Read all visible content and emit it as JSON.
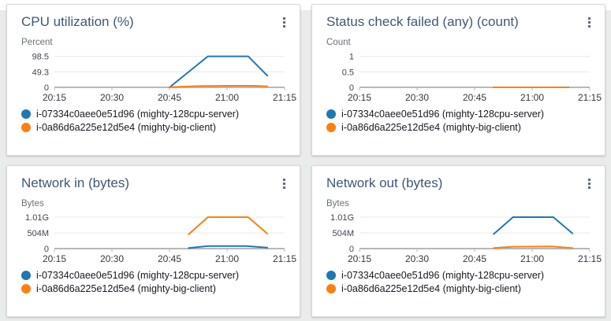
{
  "page": {
    "background_color": "#eaebeb",
    "card_border_color": "#d5d9d9",
    "title_color": "#3f5873"
  },
  "chart_data": [
    {
      "type": "line",
      "title": "CPU utilization (%)",
      "unit_label": "Percent",
      "ylim": [
        0,
        110
      ],
      "x_domain": [
        0,
        60
      ],
      "grid": true,
      "legend_position": "bottom",
      "y_ticks": [
        {
          "value": 98.5,
          "label": "98.5"
        },
        {
          "value": 49.3,
          "label": "49.3"
        },
        {
          "value": 0,
          "label": "0"
        }
      ],
      "x_ticks": [
        {
          "minute": 0,
          "label": "20:15"
        },
        {
          "minute": 15,
          "label": "20:30"
        },
        {
          "minute": 30,
          "label": "20:45"
        },
        {
          "minute": 45,
          "label": "21:00"
        },
        {
          "minute": 60,
          "label": "21:15"
        }
      ],
      "series": [
        {
          "name": "i-07334c0aee0e51d96 (mighty-128cpu-server)",
          "color": "#1f77b4",
          "points": [
            [
              30,
              0
            ],
            [
              40,
              98.5
            ],
            [
              50.5,
              98.5
            ],
            [
              55.5,
              37
            ]
          ]
        },
        {
          "name": "i-0a86d6a225e12d5e4 (mighty-big-client)",
          "color": "#ff7f0e",
          "points": [
            [
              30,
              0.8
            ],
            [
              38,
              4
            ],
            [
              46,
              5
            ],
            [
              52,
              5
            ],
            [
              55.5,
              3
            ]
          ]
        }
      ]
    },
    {
      "type": "line",
      "title": "Status check failed (any) (count)",
      "unit_label": "Count",
      "ylim": [
        0,
        1.12
      ],
      "x_domain": [
        0,
        60
      ],
      "grid": true,
      "legend_position": "bottom",
      "y_ticks": [
        {
          "value": 1,
          "label": "1"
        },
        {
          "value": 0.5,
          "label": "0.5"
        },
        {
          "value": 0,
          "label": "0"
        }
      ],
      "x_ticks": [
        {
          "minute": 0,
          "label": "20:15"
        },
        {
          "minute": 15,
          "label": "20:30"
        },
        {
          "minute": 30,
          "label": "20:45"
        },
        {
          "minute": 45,
          "label": "21:00"
        },
        {
          "minute": 60,
          "label": "21:15"
        }
      ],
      "series": [
        {
          "name": "i-07334c0aee0e51d96 (mighty-128cpu-server)",
          "color": "#1f77b4",
          "points": [
            [
              35,
              0
            ],
            [
              54.5,
              0
            ]
          ]
        },
        {
          "name": "i-0a86d6a225e12d5e4 (mighty-big-client)",
          "color": "#ff7f0e",
          "points": [
            [
              35,
              0
            ],
            [
              54.5,
              0
            ]
          ]
        }
      ]
    },
    {
      "type": "line",
      "title": "Network in (bytes)",
      "unit_label": "Bytes",
      "ylim": [
        0,
        1.11
      ],
      "x_domain": [
        0,
        60
      ],
      "grid": true,
      "legend_position": "bottom",
      "y_ticks": [
        {
          "value": 1.01,
          "label": "1.01G"
        },
        {
          "value": 0.504,
          "label": "504M"
        },
        {
          "value": 0,
          "label": "0"
        }
      ],
      "x_ticks": [
        {
          "minute": 0,
          "label": "20:15"
        },
        {
          "minute": 15,
          "label": "20:30"
        },
        {
          "minute": 30,
          "label": "20:45"
        },
        {
          "minute": 45,
          "label": "21:00"
        },
        {
          "minute": 60,
          "label": "21:15"
        }
      ],
      "series": [
        {
          "name": "i-07334c0aee0e51d96 (mighty-128cpu-server)",
          "color": "#1f77b4",
          "points": [
            [
              35,
              0.02
            ],
            [
              40,
              0.08
            ],
            [
              50,
              0.08
            ],
            [
              55.5,
              0.03
            ]
          ]
        },
        {
          "name": "i-0a86d6a225e12d5e4 (mighty-big-client)",
          "color": "#ff7f0e",
          "points": [
            [
              35,
              0.46
            ],
            [
              40,
              1.01
            ],
            [
              50.5,
              1.01
            ],
            [
              55.5,
              0.48
            ]
          ]
        }
      ]
    },
    {
      "type": "line",
      "title": "Network out (bytes)",
      "unit_label": "Bytes",
      "ylim": [
        0,
        1.11
      ],
      "x_domain": [
        0,
        60
      ],
      "grid": true,
      "legend_position": "bottom",
      "y_ticks": [
        {
          "value": 1.01,
          "label": "1.01G"
        },
        {
          "value": 0.504,
          "label": "504M"
        },
        {
          "value": 0,
          "label": "0"
        }
      ],
      "x_ticks": [
        {
          "minute": 0,
          "label": "20:15"
        },
        {
          "minute": 15,
          "label": "20:30"
        },
        {
          "minute": 30,
          "label": "20:45"
        },
        {
          "minute": 45,
          "label": "21:00"
        },
        {
          "minute": 60,
          "label": "21:15"
        }
      ],
      "series": [
        {
          "name": "i-07334c0aee0e51d96 (mighty-128cpu-server)",
          "color": "#1f77b4",
          "points": [
            [
              35,
              0.47
            ],
            [
              40,
              1.01
            ],
            [
              50.5,
              1.01
            ],
            [
              55.5,
              0.49
            ]
          ]
        },
        {
          "name": "i-0a86d6a225e12d5e4 (mighty-big-client)",
          "color": "#ff7f0e",
          "points": [
            [
              35,
              0.02
            ],
            [
              40,
              0.06
            ],
            [
              50,
              0.07
            ],
            [
              55.5,
              0.02
            ]
          ]
        }
      ]
    }
  ]
}
